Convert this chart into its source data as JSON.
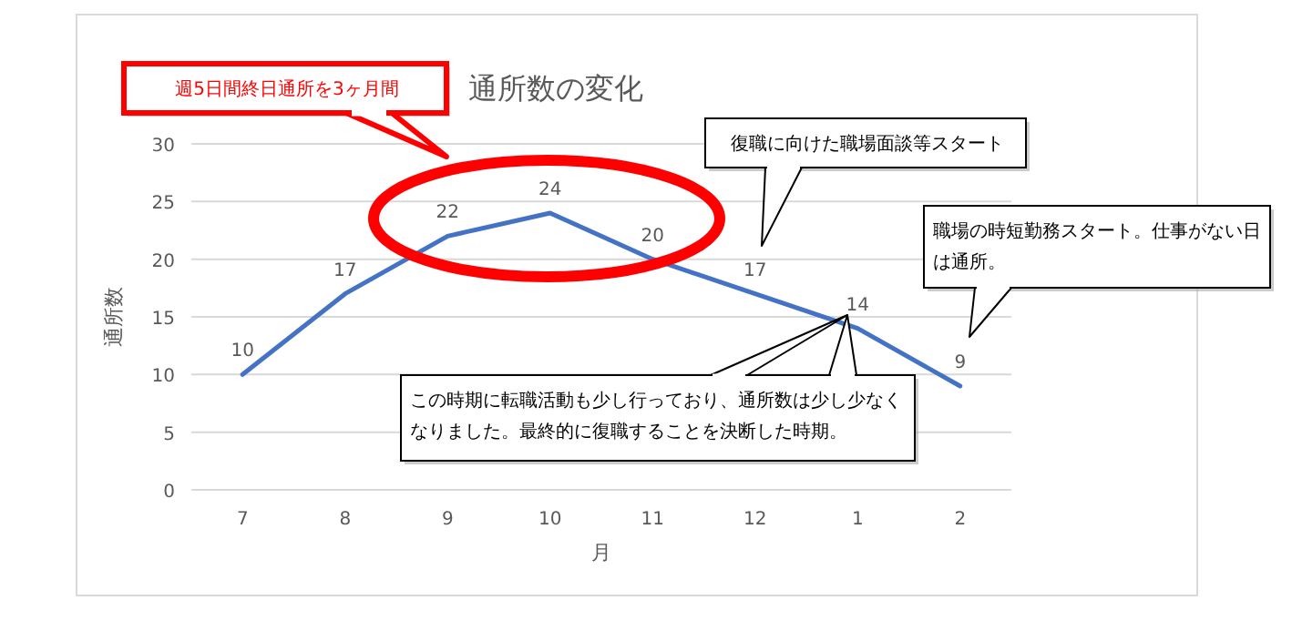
{
  "chart_data": {
    "type": "line",
    "title": "通所数の変化",
    "xlabel": "月",
    "ylabel": "通所数",
    "categories": [
      "7",
      "8",
      "9",
      "10",
      "11",
      "12",
      "1",
      "2"
    ],
    "series": [
      {
        "color": "#4472c4",
        "values": [
          10,
          17,
          22,
          24,
          20,
          17,
          14,
          9
        ]
      }
    ],
    "ylim": [
      0,
      30
    ],
    "yticks": [
      0,
      5,
      10,
      15,
      20,
      25,
      30
    ],
    "grid": "y",
    "data_labels": true,
    "marker": "none",
    "line_style": "solid",
    "annotations": [
      "週5日間終日通所を3ヶ月間",
      "復職に向けた職場面談等スタート",
      "職場の時短勤務スタート。仕事がない日は通所。",
      "この時期に転職活動も少し行っており、通所数は少し少なくなりました。最終的に復職することを決断した時期。"
    ]
  }
}
